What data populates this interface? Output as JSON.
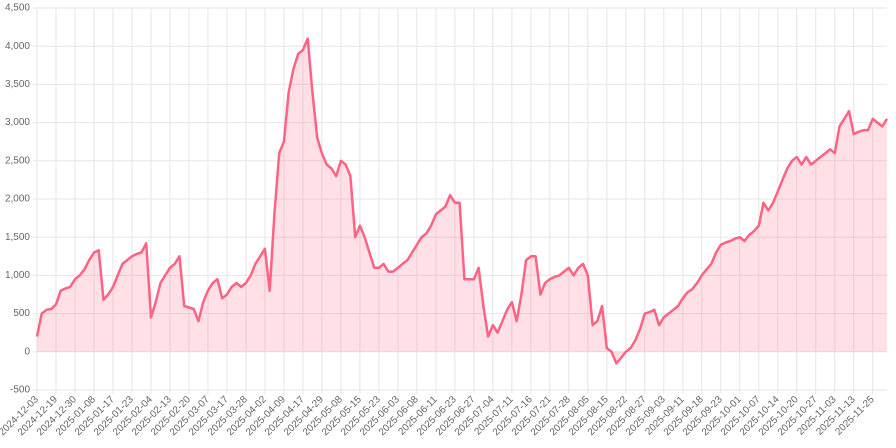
{
  "chart_data": {
    "type": "line",
    "categories": [
      "2024-12-03",
      null,
      null,
      null,
      "2024-12-19",
      null,
      null,
      null,
      "2024-12-30",
      null,
      null,
      null,
      "2025-01-08",
      null,
      null,
      null,
      "2025-01-17",
      null,
      null,
      null,
      "2025-01-23",
      null,
      null,
      null,
      "2025-02-04",
      null,
      null,
      null,
      "2025-02-13",
      null,
      null,
      null,
      "2025-02-20",
      null,
      null,
      null,
      "2025-03-07",
      null,
      null,
      null,
      "2025-03-17",
      null,
      null,
      null,
      "2025-03-28",
      null,
      null,
      null,
      "2025-04-02",
      null,
      null,
      null,
      "2025-04-09",
      null,
      null,
      null,
      "2025-04-17",
      null,
      null,
      null,
      "2025-04-29",
      null,
      null,
      null,
      "2025-05-08",
      null,
      null,
      null,
      "2025-05-15",
      null,
      null,
      null,
      "2025-05-23",
      null,
      null,
      null,
      "2025-06-03",
      null,
      null,
      null,
      "2025-06-08",
      null,
      null,
      null,
      "2025-06-11",
      null,
      null,
      null,
      "2025-06-23",
      null,
      null,
      null,
      "2025-06-27",
      null,
      null,
      null,
      "2025-07-04",
      null,
      null,
      null,
      "2025-07-11",
      null,
      null,
      null,
      "2025-07-16",
      null,
      null,
      null,
      "2025-07-21",
      null,
      null,
      null,
      "2025-07-28",
      null,
      null,
      null,
      "2025-08-05",
      null,
      null,
      null,
      "2025-08-15",
      null,
      null,
      null,
      "2025-08-22",
      null,
      null,
      null,
      "2025-08-27",
      null,
      null,
      null,
      "2025-09-03",
      null,
      null,
      null,
      "2025-09-11",
      null,
      null,
      null,
      "2025-09-18",
      null,
      null,
      null,
      "2025-09-23",
      null,
      null,
      null,
      "2025-10-01",
      null,
      null,
      null,
      "2025-10-07",
      null,
      null,
      null,
      "2025-10-14",
      null,
      null,
      null,
      "2025-10-20",
      null,
      null,
      null,
      "2025-10-27",
      null,
      null,
      null,
      "2025-11-03",
      null,
      null,
      null,
      "2025-11-13",
      null,
      null,
      null,
      "2025-11-25",
      null,
      null,
      null
    ],
    "series": [
      {
        "color": "#ff6384",
        "fill": "rgba(255,99,132,0.2)",
        "values": [
          200,
          500,
          550,
          560,
          620,
          800,
          830,
          850,
          950,
          1000,
          1080,
          1200,
          1300,
          1330,
          680,
          750,
          850,
          1000,
          1150,
          1200,
          1250,
          1280,
          1300,
          1420,
          450,
          650,
          900,
          1000,
          1100,
          1150,
          1250,
          600,
          580,
          560,
          400,
          650,
          800,
          900,
          950,
          700,
          750,
          850,
          900,
          850,
          900,
          1000,
          1150,
          1250,
          1350,
          800,
          1800,
          2600,
          2750,
          3400,
          3700,
          3900,
          3950,
          4100,
          3400,
          2800,
          2600,
          2450,
          2400,
          2300,
          2500,
          2450,
          2300,
          1500,
          1650,
          1500,
          1300,
          1100,
          1100,
          1150,
          1050,
          1050,
          1100,
          1150,
          1200,
          1300,
          1400,
          1500,
          1550,
          1650,
          1800,
          1850,
          1900,
          2050,
          1950,
          1950,
          950,
          950,
          950,
          1100,
          600,
          200,
          350,
          250,
          400,
          550,
          650,
          400,
          750,
          1200,
          1250,
          1250,
          750,
          900,
          950,
          980,
          1000,
          1050,
          1100,
          1000,
          1100,
          1150,
          1000,
          350,
          400,
          600,
          50,
          0,
          -150,
          -80,
          0,
          50,
          150,
          300,
          500,
          520,
          550,
          350,
          450,
          500,
          550,
          600,
          700,
          780,
          820,
          900,
          1000,
          1080,
          1150,
          1300,
          1400,
          1430,
          1450,
          1480,
          1500,
          1450,
          1530,
          1580,
          1650,
          1950,
          1850,
          1950,
          2100,
          2250,
          2400,
          2500,
          2550,
          2450,
          2550,
          2450,
          2500,
          2550,
          2600,
          2650,
          2600,
          2950,
          3050,
          3150,
          2850,
          2880,
          2900,
          2900,
          3050,
          3000,
          2950,
          3050
        ]
      }
    ],
    "ylim": [
      -500,
      4500
    ],
    "yticks": [
      {
        "value": -500,
        "label": "-500"
      },
      0,
      500,
      {
        "value": 1000,
        "label": "1,000"
      },
      {
        "value": 1500,
        "label": "1,500"
      },
      {
        "value": 2000,
        "label": "2,000"
      },
      {
        "value": 2500,
        "label": "2,500"
      },
      {
        "value": 3000,
        "label": "3,000"
      },
      {
        "value": 3500,
        "label": "3,500"
      },
      {
        "value": 4000,
        "label": "4,000"
      },
      {
        "value": 4500,
        "label": "4,500"
      }
    ],
    "grid": true
  }
}
